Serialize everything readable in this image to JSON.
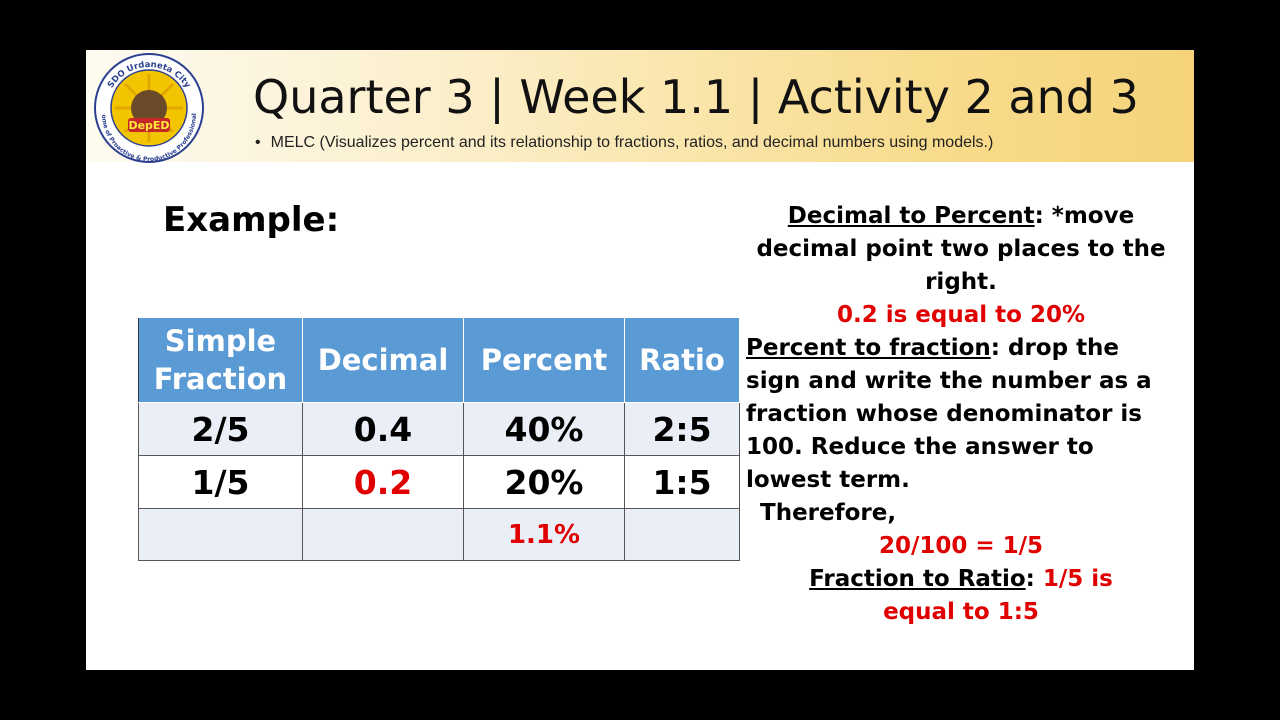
{
  "logo": {
    "ring_text_top": "SDO Urdaneta City",
    "ring_text_bottom": "Home of Proactive & Productive Professionals",
    "center_text": "DepED"
  },
  "header": {
    "title": "Quarter 3 | Week 1.1 | Activity 2 and 3",
    "bullet_symbol": "•",
    "bullet": "MELC (Visualizes percent and its relationship to fractions, ratios, and decimal numbers using models.)"
  },
  "example_label": "Example:",
  "table": {
    "headers": [
      "Simple Fraction",
      "Decimal",
      "Percent",
      "Ratio"
    ],
    "rows": [
      [
        "2/5",
        "0.4",
        "40%",
        "2:5"
      ],
      [
        "1/5",
        "0.2",
        "20%",
        "1:5"
      ],
      [
        "",
        "",
        "1.1%",
        ""
      ]
    ]
  },
  "explanation": {
    "decimal_to_percent_heading": "Decimal to Percent",
    "decimal_to_percent_rule": ": *move decimal point two places to the right.",
    "decimal_example": "0.2 is equal to 20%",
    "percent_to_fraction_heading": "Percent to fraction",
    "percent_to_fraction_rule": ": drop the sign and write the number as a fraction whose denominator is 100. Reduce the answer to lowest term.",
    "therefore": "Therefore,",
    "fraction_result": "20/100 = 1/5",
    "fraction_to_ratio_heading": "Fraction to Ratio",
    "fraction_to_ratio_rule": ": ",
    "ratio_result_prefix": "1/5 is",
    "ratio_result_suffix": "equal to 1:5"
  },
  "colors": {
    "header_gradient_end": "#f6d37a",
    "table_header": "#5b9bd5",
    "highlight_red": "#e00000"
  }
}
